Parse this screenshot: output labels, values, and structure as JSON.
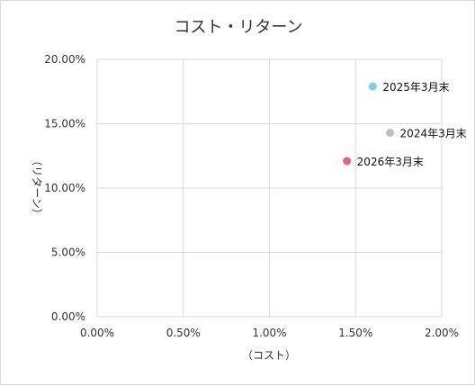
{
  "chart_data": {
    "type": "scatter",
    "title": "コスト・リターン",
    "xlabel": "（コスト）",
    "ylabel": "（リターン）",
    "xlim": [
      0,
      0.02
    ],
    "ylim": [
      0,
      0.2
    ],
    "x_ticks": [
      "0.00%",
      "0.50%",
      "1.00%",
      "1.50%",
      "2.00%"
    ],
    "y_ticks": [
      "0.00%",
      "5.00%",
      "10.00%",
      "15.00%",
      "20.00%"
    ],
    "grid": true,
    "legend": "none",
    "points": [
      {
        "label": "2025年3月末",
        "x": 0.016,
        "y": 0.179,
        "color": "#7ecfe0"
      },
      {
        "label": "2024年3月末",
        "x": 0.017,
        "y": 0.143,
        "color": "#bfbfbf"
      },
      {
        "label": "2026年3月末",
        "x": 0.0145,
        "y": 0.121,
        "color": "#e8607b"
      }
    ]
  }
}
